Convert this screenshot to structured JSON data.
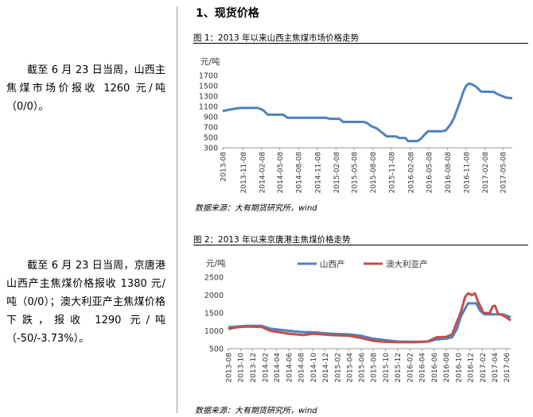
{
  "left_texts": {
    "p1": "截至 6 月 23 日当周，山西主焦煤市场价报收 1260 元/吨（0/0）。",
    "p2": "截至 6 月 23 日当周，京唐港山西产主焦煤价格报收 1380 元/吨（0/0）；澳大利亚产主焦煤价格下跌，报收 1290 元/吨（-50/-3.73%）。"
  },
  "section_title": "1、现货价格",
  "figures": {
    "fig1_title": "图 1：2013 年以来山西主焦煤市场价格走势",
    "fig2_title": "图 2：2013 年以来京唐港主焦煤价格走势",
    "source1": "数据来源：大有期货研究所，wind",
    "source2": "数据来源：大有期货研究所，wind"
  },
  "colors": {
    "shanxi": "#4f81bd",
    "australia": "#c0504d"
  },
  "chart_data": [
    {
      "type": "line",
      "title": "图 1：2013 年以来山西主焦煤市场价格走势",
      "ylabel": "元/吨",
      "ylim": [
        300,
        1700
      ],
      "yticks": [
        300,
        500,
        700,
        900,
        1100,
        1300,
        1500,
        1700
      ],
      "grid": false,
      "xlim": [
        "2013-08-01",
        "2017-06-23"
      ],
      "xticks": [
        "2013-08",
        "2013-11-08",
        "2014-02-08",
        "2014-05-08",
        "2014-08-08",
        "2014-11-08",
        "2015-02-08",
        "2015-05-08",
        "2015-08-08",
        "2015-11-08",
        "2016-02-08",
        "2016-05-08",
        "2016-08-08",
        "2016-11-08",
        "2017-02-08",
        "2017-05-08"
      ],
      "series": [
        {
          "color": "#4f81bd",
          "points": [
            [
              "2013-08-01",
              1010
            ],
            [
              "2013-09-05",
              1040
            ],
            [
              "2013-10-05",
              1060
            ],
            [
              "2013-11-01",
              1070
            ],
            [
              "2014-01-20",
              1070
            ],
            [
              "2014-02-15",
              1030
            ],
            [
              "2014-03-10",
              940
            ],
            [
              "2014-05-25",
              940
            ],
            [
              "2014-06-15",
              880
            ],
            [
              "2014-12-20",
              880
            ],
            [
              "2015-01-10",
              860
            ],
            [
              "2015-02-25",
              860
            ],
            [
              "2015-03-15",
              800
            ],
            [
              "2015-06-25",
              800
            ],
            [
              "2015-07-10",
              780
            ],
            [
              "2015-07-30",
              720
            ],
            [
              "2015-08-25",
              680
            ],
            [
              "2015-09-20",
              600
            ],
            [
              "2015-10-15",
              520
            ],
            [
              "2015-11-30",
              520
            ],
            [
              "2015-12-15",
              490
            ],
            [
              "2016-01-15",
              490
            ],
            [
              "2016-01-28",
              430
            ],
            [
              "2016-03-15",
              430
            ],
            [
              "2016-03-30",
              470
            ],
            [
              "2016-04-20",
              560
            ],
            [
              "2016-05-05",
              620
            ],
            [
              "2016-07-15",
              620
            ],
            [
              "2016-08-01",
              640
            ],
            [
              "2016-08-25",
              760
            ],
            [
              "2016-09-10",
              880
            ],
            [
              "2016-09-25",
              1040
            ],
            [
              "2016-10-10",
              1200
            ],
            [
              "2016-10-25",
              1380
            ],
            [
              "2016-11-08",
              1500
            ],
            [
              "2016-11-20",
              1540
            ],
            [
              "2016-12-05",
              1530
            ],
            [
              "2016-12-25",
              1490
            ],
            [
              "2017-01-20",
              1390
            ],
            [
              "2017-03-25",
              1380
            ],
            [
              "2017-04-10",
              1340
            ],
            [
              "2017-05-05",
              1300
            ],
            [
              "2017-05-25",
              1270
            ],
            [
              "2017-06-23",
              1260
            ]
          ]
        }
      ]
    },
    {
      "type": "line",
      "title": "图 2：2013 年以来京唐港主焦煤价格走势",
      "ylabel": "元/吨",
      "ylim": [
        500,
        2500
      ],
      "yticks": [
        500,
        1000,
        1500,
        2000,
        2500
      ],
      "grid": false,
      "legend": "top",
      "xlim": [
        "2013-08-01",
        "2017-06-23"
      ],
      "xticks": [
        "2013-08",
        "2013-10",
        "2013-12",
        "2014-02",
        "2014-04",
        "2014-06",
        "2014-08",
        "2014-10",
        "2014-12",
        "2015-02",
        "2015-04",
        "2015-06",
        "2015-08",
        "2015-10",
        "2015-12",
        "2016-02",
        "2016-04",
        "2016-06",
        "2016-08",
        "2016-10",
        "2016-12",
        "2017-02",
        "2017-04",
        "2017-06"
      ],
      "series": [
        {
          "name": "山西产",
          "color": "#4f81bd",
          "points": [
            [
              "2013-08-01",
              1100
            ],
            [
              "2013-09-15",
              1120
            ],
            [
              "2013-11-01",
              1140
            ],
            [
              "2014-01-15",
              1140
            ],
            [
              "2014-03-01",
              1060
            ],
            [
              "2014-06-01",
              1000
            ],
            [
              "2014-08-15",
              960
            ],
            [
              "2014-10-01",
              960
            ],
            [
              "2015-01-01",
              920
            ],
            [
              "2015-04-01",
              900
            ],
            [
              "2015-06-01",
              860
            ],
            [
              "2015-08-01",
              780
            ],
            [
              "2015-10-01",
              740
            ],
            [
              "2015-12-01",
              700
            ],
            [
              "2016-03-01",
              690
            ],
            [
              "2016-05-01",
              700
            ],
            [
              "2016-06-15",
              760
            ],
            [
              "2016-08-01",
              780
            ],
            [
              "2016-09-01",
              820
            ],
            [
              "2016-09-25",
              1050
            ],
            [
              "2016-10-15",
              1400
            ],
            [
              "2016-11-05",
              1620
            ],
            [
              "2016-11-20",
              1770
            ],
            [
              "2016-12-31",
              1770
            ],
            [
              "2017-01-20",
              1560
            ],
            [
              "2017-02-10",
              1460
            ],
            [
              "2017-05-15",
              1460
            ],
            [
              "2017-06-23",
              1380
            ]
          ]
        },
        {
          "name": "澳大利亚产",
          "color": "#c0504d",
          "points": [
            [
              "2013-08-01",
              1050
            ],
            [
              "2013-09-15",
              1100
            ],
            [
              "2013-11-01",
              1120
            ],
            [
              "2014-01-15",
              1110
            ],
            [
              "2014-03-01",
              1000
            ],
            [
              "2014-06-01",
              920
            ],
            [
              "2014-08-15",
              880
            ],
            [
              "2014-10-01",
              920
            ],
            [
              "2015-01-01",
              880
            ],
            [
              "2015-04-01",
              860
            ],
            [
              "2015-06-01",
              800
            ],
            [
              "2015-08-01",
              720
            ],
            [
              "2015-10-01",
              690
            ],
            [
              "2015-12-01",
              680
            ],
            [
              "2016-03-01",
              680
            ],
            [
              "2016-05-01",
              700
            ],
            [
              "2016-06-15",
              820
            ],
            [
              "2016-08-01",
              830
            ],
            [
              "2016-09-01",
              900
            ],
            [
              "2016-09-25",
              1250
            ],
            [
              "2016-10-05",
              1380
            ],
            [
              "2016-10-20",
              1620
            ],
            [
              "2016-11-05",
              1950
            ],
            [
              "2016-11-20",
              2050
            ],
            [
              "2016-12-10",
              2000
            ],
            [
              "2016-12-25",
              2050
            ],
            [
              "2017-01-10",
              1800
            ],
            [
              "2017-01-25",
              1650
            ],
            [
              "2017-02-05",
              1500
            ],
            [
              "2017-03-10",
              1500
            ],
            [
              "2017-03-25",
              1690
            ],
            [
              "2017-04-05",
              1700
            ],
            [
              "2017-04-20",
              1480
            ],
            [
              "2017-05-10",
              1440
            ],
            [
              "2017-05-25",
              1400
            ],
            [
              "2017-06-10",
              1340
            ],
            [
              "2017-06-23",
              1290
            ]
          ]
        }
      ]
    }
  ]
}
